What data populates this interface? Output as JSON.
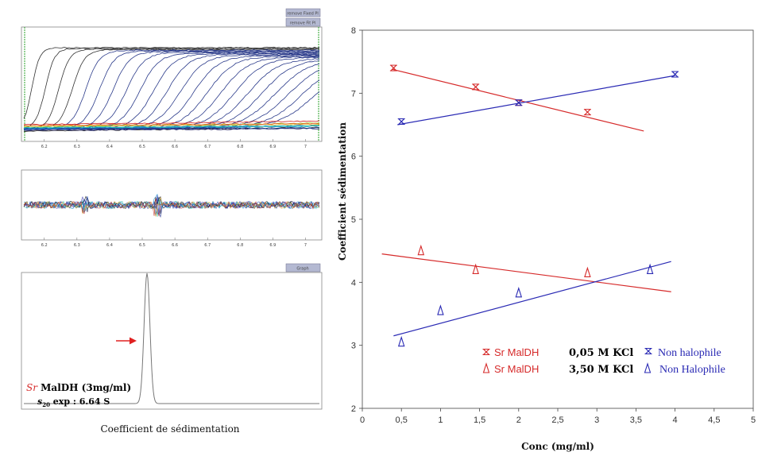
{
  "chart_data": [
    {
      "type": "line",
      "panel": "sedimentation-velocity-profiles",
      "title": "",
      "xlabel": "",
      "ylabel": "",
      "xticks": [
        "6.2",
        "6.3",
        "6.4",
        "6.5",
        "6.6",
        "6.7",
        "6.8",
        "6.9",
        "7"
      ],
      "xlim": [
        6.13,
        7.05
      ],
      "ylim": [
        -0.1,
        0.7
      ],
      "buttons": [
        "remove Fixed Pl",
        "remove Fit Pl"
      ]
    },
    {
      "type": "line",
      "panel": "residuals",
      "xticks": [
        "6.2",
        "6.3",
        "6.4",
        "6.5",
        "6.6",
        "6.7",
        "6.8",
        "6.9",
        "7"
      ],
      "xlim": [
        6.13,
        7.05
      ]
    },
    {
      "type": "line",
      "panel": "c-s-distribution",
      "title": "",
      "xlabel": "Coefficient de sédimentation",
      "ylabel": "",
      "button": "Graph",
      "peak_x": 6.64,
      "annotation": {
        "prefix": "Sr",
        "text": " MalDH (3mg/ml)",
        "s_label": "s",
        "s_sub": "20",
        "s_rest": " exp : 6.64 S"
      }
    },
    {
      "type": "scatter",
      "panel": "coefficient-vs-concentration",
      "title": "",
      "xlabel": "Conc (mg/ml)",
      "ylabel": "Coefficient sédimentation",
      "xlim": [
        0,
        5
      ],
      "ylim": [
        2,
        8
      ],
      "xticks": [
        "0",
        "0,5",
        "1",
        "1,5",
        "2",
        "2,5",
        "3",
        "3,5",
        "4",
        "4,5",
        "5"
      ],
      "yticks": [
        "2",
        "3",
        "4",
        "5",
        "6",
        "7",
        "8"
      ],
      "series": [
        {
          "name": "Sr MalDH",
          "marker": "star",
          "color": "#d62a2a",
          "x": [
            0.4,
            1.45,
            2.0,
            2.88
          ],
          "y": [
            7.4,
            7.1,
            6.85,
            6.7
          ],
          "fit": [
            [
              0.38,
              7.38
            ],
            [
              3.6,
              6.4
            ]
          ]
        },
        {
          "name": "Non halophile",
          "marker": "star",
          "color": "#2a2ab4",
          "x": [
            0.5,
            2.0,
            4.0
          ],
          "y": [
            6.55,
            6.85,
            7.3
          ],
          "fit": [
            [
              0.45,
              6.5
            ],
            [
              4.0,
              7.28
            ]
          ]
        },
        {
          "name": "Sr MalDH",
          "marker": "triangle",
          "color": "#d62a2a",
          "x": [
            0.75,
            1.45,
            2.88
          ],
          "y": [
            4.5,
            4.2,
            4.15
          ],
          "fit": [
            [
              0.25,
              4.45
            ],
            [
              3.95,
              3.85
            ]
          ]
        },
        {
          "name": "Non Halophile",
          "marker": "triangle",
          "color": "#2a2ab4",
          "x": [
            0.5,
            1.0,
            2.0,
            3.68
          ],
          "y": [
            3.05,
            3.55,
            3.83,
            4.2
          ],
          "fit": [
            [
              0.4,
              3.15
            ],
            [
              3.95,
              4.33
            ]
          ]
        }
      ],
      "legend": {
        "placement": "bottom-right",
        "row1": {
          "red": "Sr MalDH",
          "condition": "0,05 M KCl",
          "blue": "Non halophile"
        },
        "row2": {
          "red": "Sr MalDH",
          "condition": "3,50 M KCl",
          "blue": "Non Halophile"
        }
      }
    }
  ]
}
